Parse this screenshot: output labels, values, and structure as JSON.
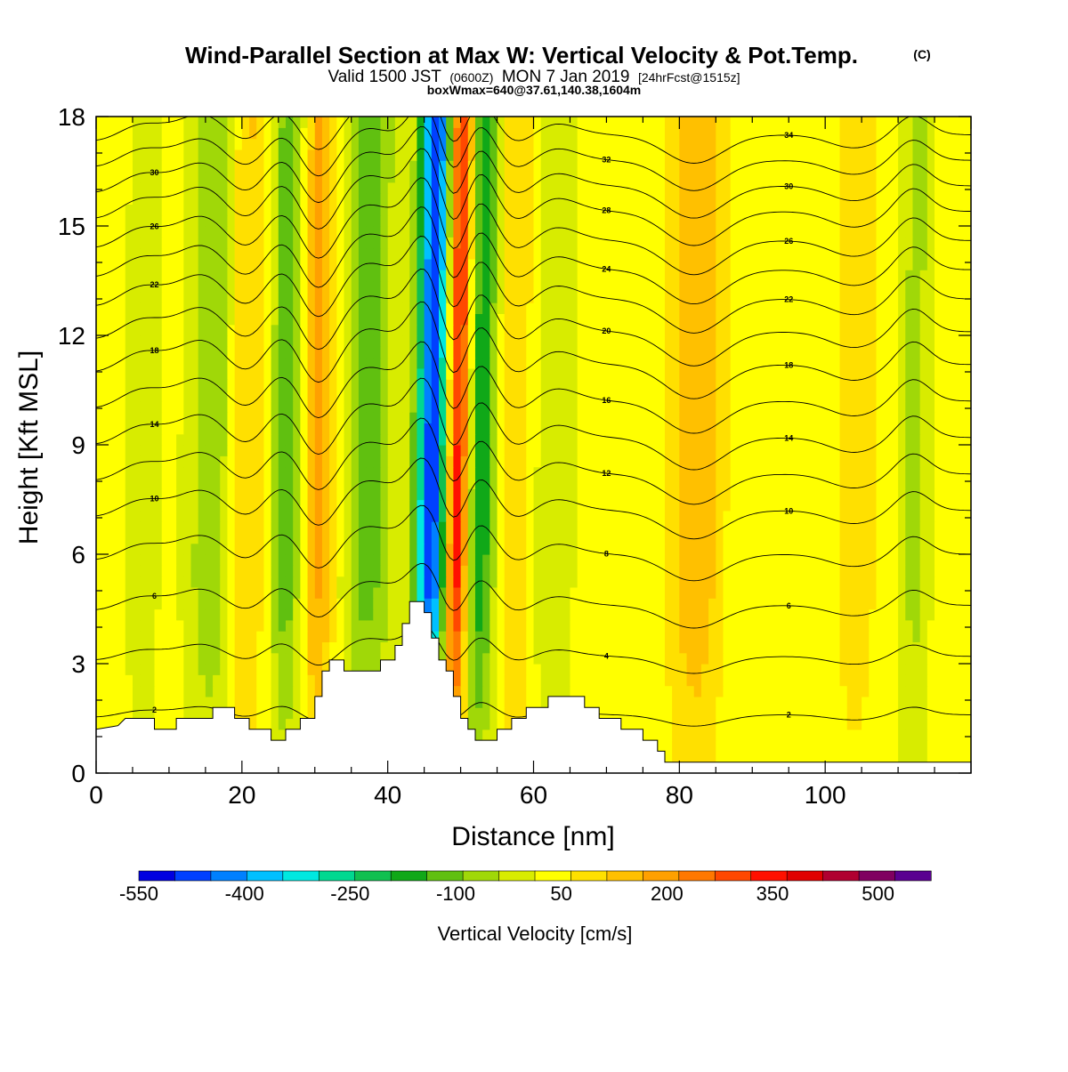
{
  "title": {
    "main": "Wind-Parallel Section at Max W: Vertical Velocity & Pot.Temp.",
    "copyright": "(C)",
    "valid_prefix": "Valid 1500 JST",
    "valid_utc": "(0600Z)",
    "valid_date": "MON 7 Jan 2019",
    "forecast": "[24hrFcst@1515z]",
    "boxinfo": "boxWmax=640@37.61,140.38,1604m"
  },
  "chart_data": {
    "type": "heatmap",
    "xlabel": "Distance [nm]",
    "ylabel": "Height [Kft MSL]",
    "xlim": [
      0,
      120
    ],
    "ylim": [
      0,
      18
    ],
    "x_ticks": [
      0,
      20,
      40,
      60,
      80,
      100
    ],
    "y_ticks": [
      0,
      3,
      6,
      9,
      12,
      15,
      18
    ],
    "terrain": [
      [
        0,
        1.2
      ],
      [
        3,
        1.3
      ],
      [
        4,
        1.5
      ],
      [
        8,
        1.5
      ],
      [
        8,
        1.2
      ],
      [
        11,
        1.2
      ],
      [
        11,
        1.5
      ],
      [
        16,
        1.5
      ],
      [
        16,
        1.8
      ],
      [
        19,
        1.8
      ],
      [
        19,
        1.5
      ],
      [
        21,
        1.5
      ],
      [
        21,
        1.2
      ],
      [
        24,
        1.2
      ],
      [
        24,
        0.9
      ],
      [
        26,
        0.9
      ],
      [
        26,
        1.2
      ],
      [
        28,
        1.2
      ],
      [
        28,
        1.5
      ],
      [
        30,
        1.5
      ],
      [
        30,
        2.1
      ],
      [
        31,
        2.1
      ],
      [
        31,
        2.8
      ],
      [
        32,
        2.8
      ],
      [
        32,
        3.1
      ],
      [
        34,
        3.1
      ],
      [
        34,
        2.8
      ],
      [
        39,
        2.8
      ],
      [
        39,
        3.1
      ],
      [
        41,
        3.1
      ],
      [
        41,
        3.5
      ],
      [
        42,
        3.5
      ],
      [
        42,
        4.1
      ],
      [
        43,
        4.1
      ],
      [
        43,
        4.7
      ],
      [
        45,
        4.7
      ],
      [
        45,
        4.4
      ],
      [
        46,
        4.4
      ],
      [
        46,
        3.7
      ],
      [
        47,
        3.7
      ],
      [
        47,
        3.1
      ],
      [
        48,
        3.1
      ],
      [
        48,
        2.8
      ],
      [
        49,
        2.8
      ],
      [
        49,
        2.1
      ],
      [
        50,
        2.1
      ],
      [
        50,
        1.5
      ],
      [
        51,
        1.5
      ],
      [
        51,
        1.2
      ],
      [
        52,
        1.2
      ],
      [
        52,
        0.9
      ],
      [
        55,
        0.9
      ],
      [
        55,
        1.2
      ],
      [
        57,
        1.2
      ],
      [
        57,
        1.5
      ],
      [
        59,
        1.5
      ],
      [
        59,
        1.8
      ],
      [
        62,
        1.8
      ],
      [
        62,
        2.1
      ],
      [
        67,
        2.1
      ],
      [
        67,
        1.8
      ],
      [
        69,
        1.8
      ],
      [
        69,
        1.5
      ],
      [
        72,
        1.5
      ],
      [
        72,
        1.2
      ],
      [
        75,
        1.2
      ],
      [
        75,
        0.9
      ],
      [
        77,
        0.9
      ],
      [
        77,
        0.6
      ],
      [
        78,
        0.6
      ],
      [
        78,
        0.3
      ],
      [
        120,
        0.3
      ]
    ],
    "w_features": [
      {
        "x": 0,
        "hw": 3,
        "w": 30
      },
      {
        "x": 6,
        "hw": 2.5,
        "w": -50
      },
      {
        "x": 16,
        "hw": 3.5,
        "w": -130
      },
      {
        "x": 20,
        "hw": 3,
        "w": 110
      },
      {
        "x": 26,
        "hw": 2.5,
        "w": -160
      },
      {
        "x": 30,
        "hw": 2.5,
        "w": 150
      },
      {
        "x": 37,
        "hw": 3.5,
        "w": -140
      },
      {
        "x": 45.5,
        "hw": 2.2,
        "w": -520
      },
      {
        "x": 49,
        "hw": 1.8,
        "w": 380
      },
      {
        "x": 52,
        "hw": 2.5,
        "w": -230
      },
      {
        "x": 57,
        "hw": 3,
        "w": 90
      },
      {
        "x": 62,
        "hw": 3,
        "w": -70
      },
      {
        "x": 82,
        "hw": 3.5,
        "w": 130
      },
      {
        "x": 104,
        "hw": 3,
        "w": 60
      },
      {
        "x": 112,
        "hw": 2,
        "w": -90
      }
    ],
    "isentropes": [
      {
        "theta": 2,
        "base": 1.6,
        "amp": 0.6
      },
      {
        "theta": 4,
        "base": 3.2,
        "amp": 0.9
      },
      {
        "theta": 6,
        "base": 4.6,
        "amp": 1.2
      },
      {
        "theta": 8,
        "base": 6.0,
        "amp": 1.4
      },
      {
        "theta": 10,
        "base": 7.2,
        "amp": 1.5
      },
      {
        "theta": 12,
        "base": 8.2,
        "amp": 1.6
      },
      {
        "theta": 14,
        "base": 9.2,
        "amp": 1.7
      },
      {
        "theta": 16,
        "base": 10.2,
        "amp": 1.7
      },
      {
        "theta": 18,
        "base": 11.2,
        "amp": 1.8
      },
      {
        "theta": 20,
        "base": 12.1,
        "amp": 1.8
      },
      {
        "theta": 22,
        "base": 13.0,
        "amp": 1.8
      },
      {
        "theta": 24,
        "base": 13.8,
        "amp": 1.8
      },
      {
        "theta": 26,
        "base": 14.6,
        "amp": 1.8
      },
      {
        "theta": 28,
        "base": 15.4,
        "amp": 1.8
      },
      {
        "theta": 30,
        "base": 16.1,
        "amp": 1.7
      },
      {
        "theta": 32,
        "base": 16.8,
        "amp": 1.6
      },
      {
        "theta": 34,
        "base": 17.5,
        "amp": 1.5
      }
    ],
    "colorbar": {
      "label": "Vertical Velocity [cm/s]",
      "tick_labels": [
        "-550",
        "-400",
        "-250",
        "-100",
        "50",
        "200",
        "350",
        "500"
      ],
      "tick_values": [
        -550,
        -400,
        -250,
        -100,
        50,
        200,
        350,
        500
      ],
      "min": -550,
      "max": 575,
      "step": 50,
      "colors": [
        "#0000e0",
        "#0040ff",
        "#0080ff",
        "#00c0ff",
        "#00e8e0",
        "#00d890",
        "#10c050",
        "#10a818",
        "#60c010",
        "#a0d808",
        "#d8ec00",
        "#ffff00",
        "#ffe000",
        "#ffc000",
        "#ffa000",
        "#ff7800",
        "#ff4800",
        "#ff1000",
        "#e00000",
        "#b00030",
        "#800060",
        "#5a0090"
      ]
    }
  }
}
